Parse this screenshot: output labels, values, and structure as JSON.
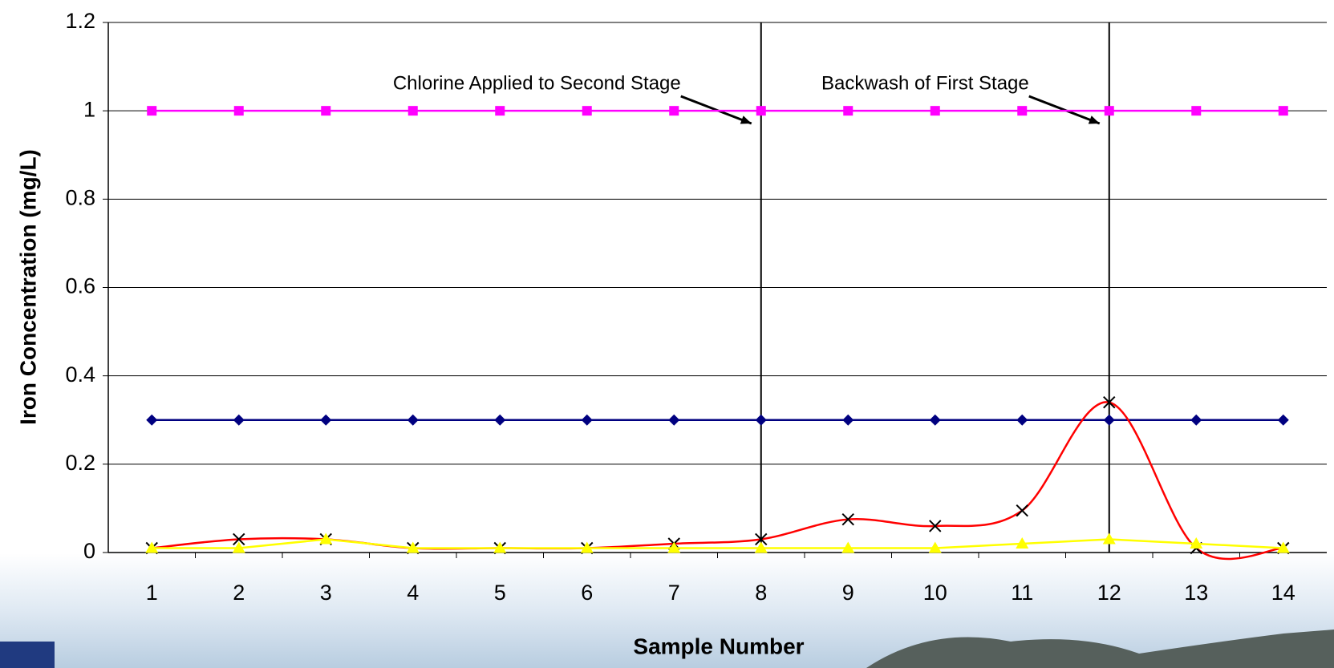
{
  "chart_data": {
    "type": "line",
    "x_label": "Sample Number",
    "y_label": "Iron Concentration (mg/L)",
    "x": [
      1,
      2,
      3,
      4,
      5,
      6,
      7,
      8,
      9,
      10,
      11,
      12,
      13,
      14
    ],
    "xlim": [
      0.5,
      14.5
    ],
    "xticks": [
      1,
      2,
      3,
      4,
      5,
      6,
      7,
      8,
      9,
      10,
      11,
      12,
      13,
      14
    ],
    "ylim": [
      0,
      1.2
    ],
    "yticks": [
      0,
      0.2,
      0.4,
      0.6,
      0.8,
      1,
      1.2
    ],
    "grid": true,
    "series": [
      {
        "color": "#000080",
        "marker": "diamond",
        "marker_color": "#000080",
        "smooth": false,
        "values": [
          0.3,
          0.3,
          0.3,
          0.3,
          0.3,
          0.3,
          0.3,
          0.3,
          0.3,
          0.3,
          0.3,
          0.3,
          0.3,
          0.3
        ]
      },
      {
        "color": "#ff00ff",
        "marker": "square",
        "marker_color": "#ff00ff",
        "smooth": false,
        "values": [
          1,
          1,
          1,
          1,
          1,
          1,
          1,
          1,
          1,
          1,
          1,
          1,
          1,
          1
        ]
      },
      {
        "color": "#ff0000",
        "marker": "x",
        "marker_color": "#000000",
        "smooth": true,
        "values": [
          0.01,
          0.03,
          0.03,
          0.01,
          0.01,
          0.01,
          0.02,
          0.03,
          0.075,
          0.06,
          0.095,
          0.34,
          0.01,
          0.01
        ]
      },
      {
        "color": "#ffff00",
        "marker": "triangle",
        "marker_color": "#ffff00",
        "smooth": false,
        "values": [
          0.01,
          0.01,
          0.03,
          0.01,
          0.01,
          0.01,
          0.01,
          0.01,
          0.01,
          0.01,
          0.02,
          0.03,
          0.02,
          0.01
        ]
      }
    ],
    "annotations": [
      {
        "text": "Chlorine Applied to Second Stage",
        "x": 8
      },
      {
        "text": "Backwash of First Stage",
        "x": 12
      }
    ]
  }
}
